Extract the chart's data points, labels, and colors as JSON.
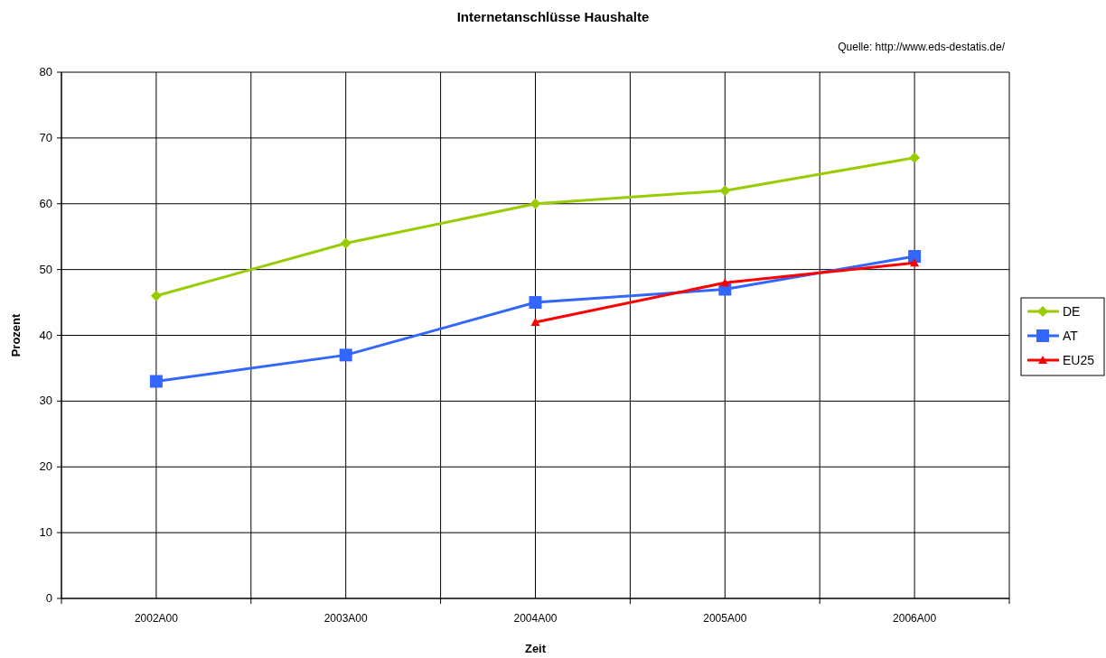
{
  "chart_data": {
    "type": "line",
    "title": "Internetanschlüsse Haushalte",
    "xlabel": "Zeit",
    "ylabel": "Prozent",
    "annotations": [
      "Quelle: http://www.eds-destatis.de/"
    ],
    "categories": [
      "2002A00",
      "2003A00",
      "2004A00",
      "2005A00",
      "2006A00"
    ],
    "series": [
      {
        "name": "DE",
        "color": "#99cc00",
        "marker": "diamond",
        "values": [
          46,
          54,
          60,
          62,
          67
        ]
      },
      {
        "name": "AT",
        "color": "#3366ff",
        "marker": "square",
        "values": [
          33,
          37,
          45,
          47,
          52
        ]
      },
      {
        "name": "EU25",
        "color": "#ff0000",
        "marker": "triangle",
        "values": [
          null,
          null,
          42,
          48,
          51
        ]
      }
    ],
    "ylim": [
      0,
      80
    ],
    "yticks": [
      0,
      10,
      20,
      30,
      40,
      50,
      60,
      70,
      80
    ],
    "grid": true,
    "legend": "right"
  }
}
